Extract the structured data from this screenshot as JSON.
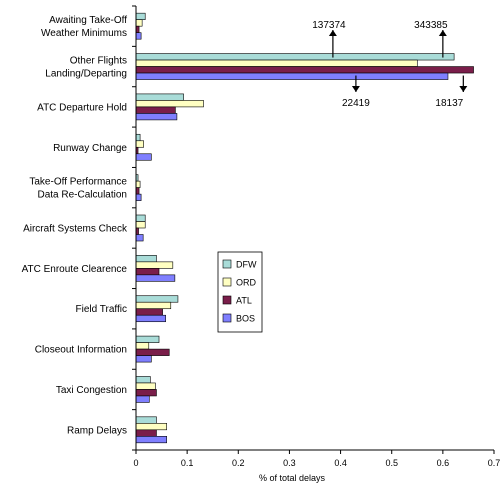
{
  "chart_data": {
    "type": "bar",
    "orientation": "horizontal",
    "xlabel": "% of total delays",
    "xlim": [
      0,
      0.7
    ],
    "xticks": [
      0,
      0.1,
      0.2,
      0.3,
      0.4,
      0.5,
      0.6,
      0.7
    ],
    "xtick_labels": [
      "0",
      "0.1",
      "0.2",
      "0.3",
      "0.4",
      "0.5",
      "0.6",
      "0.7"
    ],
    "categories": [
      [
        "Awaiting Take-Off",
        "Weather Minimums"
      ],
      [
        "Other Flights",
        "Landing/Departing"
      ],
      [
        "ATC Departure Hold"
      ],
      [
        "Runway Change"
      ],
      [
        "Take-Off Performance",
        "Data Re-Calculation"
      ],
      [
        "Aircraft Systems Check"
      ],
      [
        "ATC Enroute Clearence"
      ],
      [
        "Field Traffic"
      ],
      [
        "Closeout Information"
      ],
      [
        "Taxi Congestion"
      ],
      [
        "Ramp Delays"
      ]
    ],
    "series": [
      {
        "name": "DFW",
        "color": "#a9dcd8",
        "values": [
          0.018,
          0.622,
          0.093,
          0.008,
          0.004,
          0.018,
          0.04,
          0.082,
          0.045,
          0.028,
          0.04
        ]
      },
      {
        "name": "ORD",
        "color": "#ffffc2",
        "values": [
          0.012,
          0.55,
          0.132,
          0.015,
          0.008,
          0.018,
          0.072,
          0.068,
          0.025,
          0.038,
          0.06
        ]
      },
      {
        "name": "ATL",
        "color": "#7a1e4a",
        "values": [
          0.006,
          0.66,
          0.077,
          0.004,
          0.006,
          0.005,
          0.045,
          0.052,
          0.065,
          0.04,
          0.04
        ]
      },
      {
        "name": "BOS",
        "color": "#7f7fff",
        "values": [
          0.01,
          0.61,
          0.08,
          0.03,
          0.01,
          0.014,
          0.076,
          0.058,
          0.03,
          0.026,
          0.06
        ]
      }
    ],
    "legend_position": "center",
    "annotations": [
      {
        "text": "137374",
        "x": 0.385,
        "direction": "up"
      },
      {
        "text": "343385",
        "x": 0.6,
        "direction": "up"
      },
      {
        "text": "22419",
        "x": 0.43,
        "direction": "down"
      },
      {
        "text": "18137",
        "x": 0.64,
        "direction": "down"
      }
    ]
  }
}
